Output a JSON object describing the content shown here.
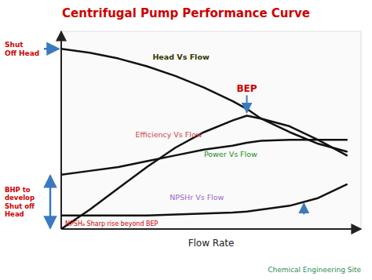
{
  "chart_data": {
    "type": "line",
    "title": "Centrifugal Pump Performance Curve",
    "subtitle": "Chemical Engineering Site",
    "x_label": "Flow Rate",
    "x": [
      0.0,
      0.1,
      0.2,
      0.3,
      0.4,
      0.5,
      0.6,
      0.65,
      0.7,
      0.8,
      0.9,
      1.0
    ],
    "series": [
      {
        "name": "Head Vs Flow",
        "color": "#111111",
        "values": [
          0.93,
          0.91,
          0.88,
          0.84,
          0.79,
          0.73,
          0.66,
          0.62,
          0.57,
          0.5,
          0.44,
          0.4
        ]
      },
      {
        "name": "Efficiency Vs Flow",
        "color": "#111111",
        "values": [
          0.0,
          0.1,
          0.21,
          0.32,
          0.42,
          0.5,
          0.56,
          0.585,
          0.57,
          0.53,
          0.46,
          0.38
        ]
      },
      {
        "name": "Power Vs Flow",
        "color": "#111111",
        "values": [
          0.28,
          0.3,
          0.32,
          0.35,
          0.38,
          0.41,
          0.43,
          0.445,
          0.455,
          0.46,
          0.46,
          0.46
        ]
      },
      {
        "name": "NPSHr Vs Flow",
        "color": "#111111",
        "values": [
          0.07,
          0.07,
          0.07,
          0.07,
          0.075,
          0.08,
          0.085,
          0.09,
          0.1,
          0.12,
          0.16,
          0.23
        ]
      }
    ],
    "annotations": [
      {
        "text": "BEP"
      },
      {
        "text": "NPSHₐ Sharp rise beyond BEP"
      },
      {
        "text": "Shut\nOff Head"
      },
      {
        "text": "BHP to\ndevelop\nShut off\nHead"
      }
    ],
    "xlim": [
      0.0,
      1.05
    ],
    "ylim": [
      0.0,
      1.02
    ],
    "xticks": [],
    "yticks": [],
    "tick_labels": false,
    "grid": false
  }
}
